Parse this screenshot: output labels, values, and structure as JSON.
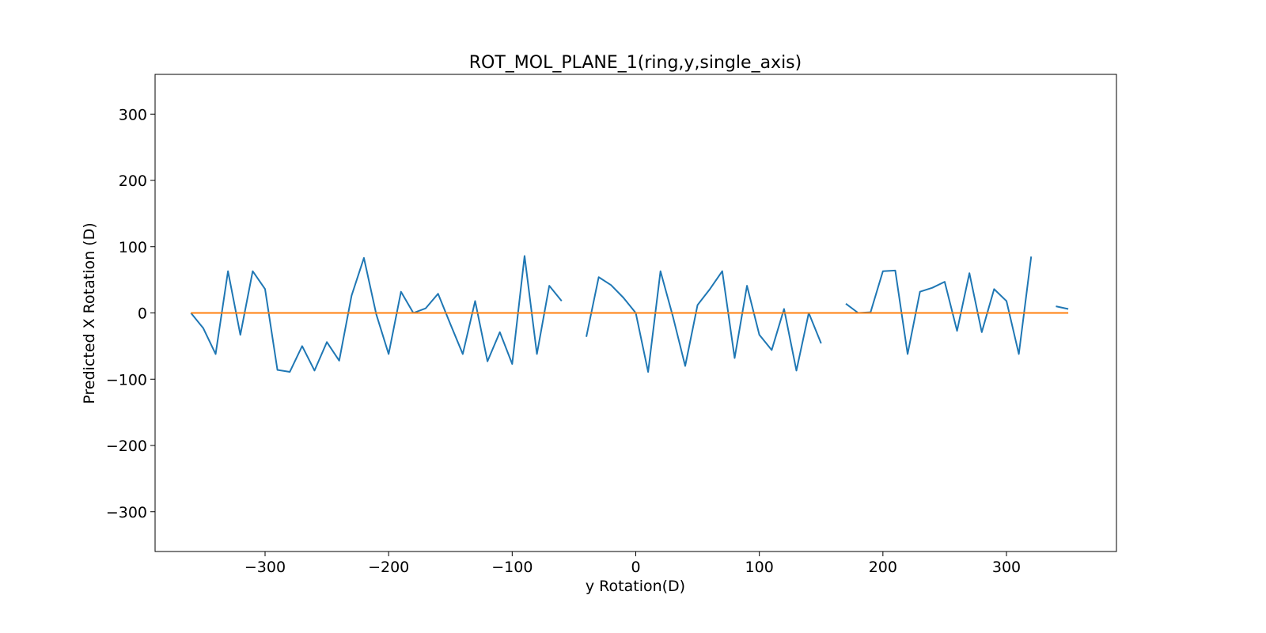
{
  "chart_data": {
    "type": "line",
    "title": "ROT_MOL_PLANE_1(ring,y,single_axis)",
    "xlabel": "y Rotation(D)",
    "ylabel": "Predicted X Rotation (D)",
    "xlim": [
      -389,
      389
    ],
    "ylim": [
      -360,
      360
    ],
    "xticks": [
      -300,
      -200,
      -100,
      0,
      100,
      200,
      300
    ],
    "yticks": [
      -300,
      -200,
      -100,
      0,
      100,
      200,
      300
    ],
    "xtick_labels": [
      "−300",
      "−200",
      "−100",
      "0",
      "100",
      "200",
      "300"
    ],
    "ytick_labels": [
      "−300",
      "−200",
      "−100",
      "0",
      "100",
      "200",
      "300"
    ],
    "grid": false,
    "series": [
      {
        "color": "#1f77b4",
        "x": [
          -360,
          -350,
          -340,
          -330,
          -320,
          -310,
          -300,
          -290,
          -280,
          -270,
          -260,
          -250,
          -240,
          -230,
          -220,
          -210,
          -200,
          -190,
          -180,
          -170,
          -160,
          -150,
          -140,
          -130,
          -120,
          -110,
          -100,
          -90,
          -80,
          -70,
          -60,
          -50,
          -40,
          -30,
          -20,
          -10,
          0,
          10,
          20,
          30,
          40,
          50,
          60,
          70,
          80,
          90,
          100,
          110,
          120,
          130,
          140,
          150,
          160,
          170,
          180,
          190,
          200,
          210,
          220,
          230,
          240,
          250,
          260,
          270,
          280,
          290,
          300,
          310,
          320,
          330,
          340,
          350
        ],
        "y": [
          0,
          -23,
          -62,
          63,
          -33,
          63,
          36,
          -86,
          -89,
          -50,
          -87,
          -44,
          -72,
          26,
          83,
          -2,
          -62,
          32,
          0,
          7,
          29,
          -17,
          -62,
          18,
          -73,
          -29,
          -77,
          86,
          -62,
          41,
          18,
          null,
          -36,
          54,
          42,
          23,
          0,
          -89,
          63,
          -5,
          -80,
          12,
          36,
          63,
          -68,
          41,
          -33,
          -56,
          6,
          -87,
          0,
          -46,
          null,
          14,
          0,
          1,
          63,
          64,
          -62,
          32,
          38,
          47,
          -27,
          60,
          -29,
          36,
          18,
          -62,
          85,
          null,
          10,
          6
        ]
      },
      {
        "color": "#ff7f0e",
        "x": [
          -360,
          350
        ],
        "y": [
          0,
          0
        ]
      }
    ]
  }
}
